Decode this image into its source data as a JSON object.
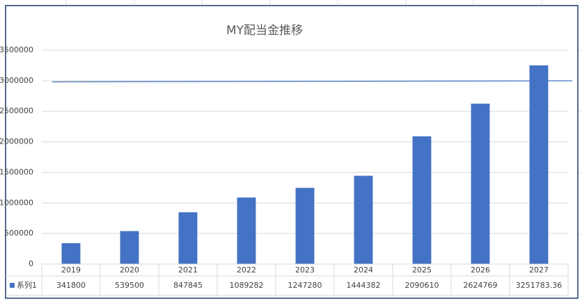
{
  "chart_data": {
    "type": "bar",
    "title": "MY配当金推移",
    "categories": [
      "2019",
      "2020",
      "2021",
      "2022",
      "2023",
      "2024",
      "2025",
      "2026",
      "2027"
    ],
    "series": [
      {
        "name": "系列1",
        "color": "#4472c4",
        "values": [
          341800,
          539500,
          847845,
          1089282,
          1247280,
          1444382,
          2090610,
          2624769,
          3251783.36
        ]
      }
    ],
    "ylim": [
      0,
      3500000
    ],
    "yticks": [
      0,
      500000,
      1000000,
      1500000,
      2000000,
      2500000,
      3000000,
      3500000
    ],
    "grid": true,
    "data_table": true
  }
}
